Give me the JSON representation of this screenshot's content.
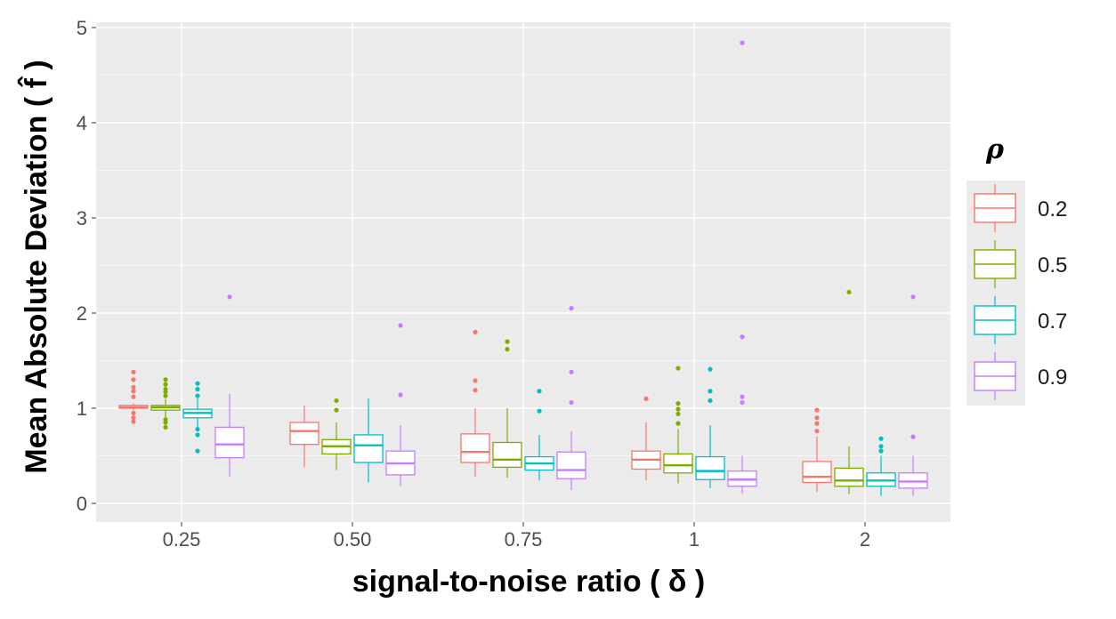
{
  "chart_data": {
    "type": "boxplot",
    "xlabel": "signal-to-noise ratio ( δ )",
    "ylabel": "Mean Absolute Deviation ( f̂ )",
    "ylim": [
      -0.2,
      5.1
    ],
    "y_ticks": [
      "0",
      "1",
      "2",
      "3",
      "4",
      "5"
    ],
    "categories": [
      "0.25",
      "0.50",
      "0.75",
      "1",
      "2"
    ],
    "legend": {
      "title": "ρ",
      "position": "right",
      "entries": [
        "0.2",
        "0.5",
        "0.7",
        "0.9"
      ]
    },
    "grid": true,
    "series": [
      {
        "name": "0.2",
        "color": "#F8766D",
        "boxes": [
          {
            "low": 0.98,
            "q1": 1.0,
            "median": 1.01,
            "q3": 1.03,
            "high": 1.05,
            "outliers": [
              0.86,
              0.9,
              0.95,
              1.12,
              1.18,
              1.22,
              1.3,
              1.38
            ]
          },
          {
            "low": 0.38,
            "q1": 0.62,
            "median": 0.76,
            "q3": 0.85,
            "high": 1.03,
            "outliers": []
          },
          {
            "low": 0.28,
            "q1": 0.43,
            "median": 0.54,
            "q3": 0.73,
            "high": 1.0,
            "outliers": [
              1.19,
              1.29,
              1.8
            ]
          },
          {
            "low": 0.24,
            "q1": 0.36,
            "median": 0.46,
            "q3": 0.55,
            "high": 0.85,
            "outliers": [
              1.1
            ]
          },
          {
            "low": 0.12,
            "q1": 0.22,
            "median": 0.28,
            "q3": 0.44,
            "high": 0.7,
            "outliers": [
              0.76,
              0.84,
              0.9,
              0.98
            ]
          }
        ]
      },
      {
        "name": "0.5",
        "color": "#7CAE00",
        "boxes": [
          {
            "low": 0.9,
            "q1": 0.98,
            "median": 1.01,
            "q3": 1.03,
            "high": 1.1,
            "outliers": [
              0.8,
              0.85,
              0.88,
              1.13,
              1.17,
              1.2,
              1.25,
              1.3
            ]
          },
          {
            "low": 0.35,
            "q1": 0.52,
            "median": 0.6,
            "q3": 0.67,
            "high": 0.85,
            "outliers": [
              0.98,
              1.08
            ]
          },
          {
            "low": 0.27,
            "q1": 0.38,
            "median": 0.46,
            "q3": 0.64,
            "high": 1.0,
            "outliers": [
              1.62,
              1.7
            ]
          },
          {
            "low": 0.21,
            "q1": 0.32,
            "median": 0.4,
            "q3": 0.52,
            "high": 0.78,
            "outliers": [
              0.84,
              0.94,
              0.99,
              1.05,
              1.42
            ]
          },
          {
            "low": 0.1,
            "q1": 0.18,
            "median": 0.24,
            "q3": 0.37,
            "high": 0.6,
            "outliers": [
              2.22
            ]
          }
        ]
      },
      {
        "name": "0.7",
        "color": "#00BFC4",
        "boxes": [
          {
            "low": 0.8,
            "q1": 0.9,
            "median": 0.95,
            "q3": 0.99,
            "high": 1.1,
            "outliers": [
              0.55,
              0.72,
              0.78,
              1.13,
              1.2,
              1.26
            ]
          },
          {
            "low": 0.22,
            "q1": 0.43,
            "median": 0.61,
            "q3": 0.72,
            "high": 1.1,
            "outliers": []
          },
          {
            "low": 0.24,
            "q1": 0.35,
            "median": 0.42,
            "q3": 0.49,
            "high": 0.72,
            "outliers": [
              0.97,
              1.18
            ]
          },
          {
            "low": 0.16,
            "q1": 0.25,
            "median": 0.34,
            "q3": 0.49,
            "high": 0.82,
            "outliers": [
              1.08,
              1.18,
              1.41
            ]
          },
          {
            "low": 0.08,
            "q1": 0.18,
            "median": 0.24,
            "q3": 0.32,
            "high": 0.5,
            "outliers": [
              0.55,
              0.6,
              0.68
            ]
          }
        ]
      },
      {
        "name": "0.9",
        "color": "#C77CFF",
        "boxes": [
          {
            "low": 0.28,
            "q1": 0.48,
            "median": 0.62,
            "q3": 0.8,
            "high": 1.15,
            "outliers": [
              2.17
            ]
          },
          {
            "low": 0.18,
            "q1": 0.3,
            "median": 0.42,
            "q3": 0.55,
            "high": 0.82,
            "outliers": [
              1.14,
              1.87
            ]
          },
          {
            "low": 0.14,
            "q1": 0.26,
            "median": 0.35,
            "q3": 0.54,
            "high": 0.76,
            "outliers": [
              1.06,
              1.38,
              2.05
            ]
          },
          {
            "low": 0.1,
            "q1": 0.18,
            "median": 0.25,
            "q3": 0.34,
            "high": 0.5,
            "outliers": [
              1.06,
              1.12,
              1.75,
              4.84
            ]
          },
          {
            "low": 0.08,
            "q1": 0.16,
            "median": 0.23,
            "q3": 0.32,
            "high": 0.5,
            "outliers": [
              0.7,
              2.17
            ]
          }
        ]
      }
    ]
  }
}
